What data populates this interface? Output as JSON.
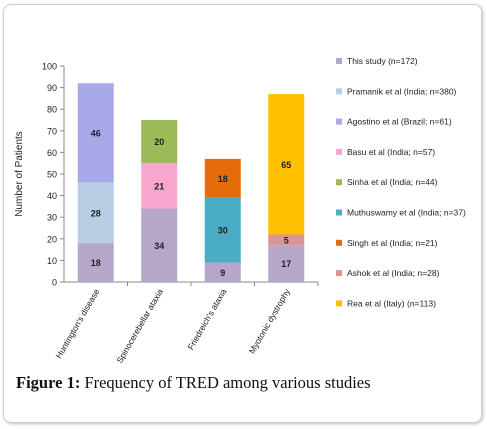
{
  "chart_data": {
    "type": "bar",
    "stacked": true,
    "ylabel": "Number of Patients",
    "xlabel": "",
    "ylim": [
      0,
      100
    ],
    "yticks": [
      0,
      10,
      20,
      30,
      40,
      50,
      60,
      70,
      80,
      90,
      100
    ],
    "categories": [
      "Huntington's disease",
      "Spinocerebellar ataxia",
      "Friedreich's ataxia",
      "Myotonic dystrophy"
    ],
    "series": [
      {
        "name": "This study (n=172)",
        "color": "#b6a6c9",
        "values": [
          18,
          34,
          9,
          17
        ]
      },
      {
        "name": "Pramanik et al (India; n=380)",
        "color": "#b9cde5",
        "values": [
          28,
          0,
          0,
          0
        ]
      },
      {
        "name": "Agostino et al (Brazil; n=61)",
        "color": "#a9a8e8",
        "values": [
          46,
          0,
          0,
          0
        ]
      },
      {
        "name": "Basu et al (India; n=57)",
        "color": "#f7a6ce",
        "values": [
          0,
          21,
          0,
          0
        ]
      },
      {
        "name": "Sinha et al (India; n=44)",
        "color": "#9bbb59",
        "values": [
          0,
          20,
          0,
          0
        ]
      },
      {
        "name": "Muthuswamy et al (India; n=37)",
        "color": "#4bacc6",
        "values": [
          0,
          0,
          30,
          0
        ]
      },
      {
        "name": "Singh et al (India; n=21)",
        "color": "#e46c0a",
        "values": [
          0,
          0,
          18,
          0
        ]
      },
      {
        "name": "Ashok et al (India; n=28)",
        "color": "#d99694",
        "values": [
          0,
          0,
          0,
          5
        ]
      },
      {
        "name": "Rea et al (Italy) (n=113)",
        "color": "#ffc000",
        "values": [
          0,
          0,
          0,
          65
        ]
      }
    ],
    "legend_position": "right",
    "grid": false
  },
  "caption": {
    "label": "Figure 1:",
    "text": " Frequency of TRED among various studies"
  }
}
